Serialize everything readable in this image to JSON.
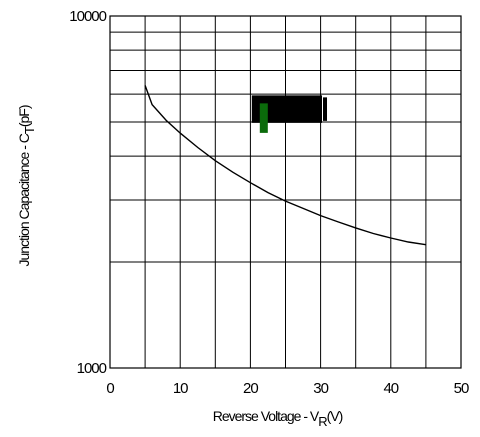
{
  "chart_data": {
    "type": "line",
    "title": "",
    "xlabel": "Reverse Voltage - V",
    "xlabel_sub": "R",
    "xlabel_unit": "(V)",
    "ylabel": "Junction Capacitance - C",
    "ylabel_sub": "T",
    "ylabel_unit": "(pF)",
    "xlim": [
      0,
      50
    ],
    "ylim": [
      1000,
      10000
    ],
    "y_scale": "log",
    "x_ticks": [
      0,
      10,
      20,
      30,
      40,
      50
    ],
    "x_tick_labels": [
      "0",
      "10",
      "20",
      "30",
      "40",
      "50"
    ],
    "y_tick_labels": [
      "1000",
      "10000"
    ],
    "grid": true,
    "series": [
      {
        "x": [
          5,
          6,
          8,
          10,
          12.5,
          15,
          17.5,
          20,
          22.5,
          25,
          27.5,
          30,
          32.5,
          35,
          37.5,
          40,
          42.5,
          45
        ],
        "y": [
          6350,
          5600,
          5050,
          4650,
          4230,
          3880,
          3600,
          3360,
          3150,
          2980,
          2840,
          2710,
          2600,
          2500,
          2410,
          2340,
          2280,
          2240
        ]
      }
    ],
    "annotation": {
      "box_color": "#000000",
      "marker_color": "#0b6b0b",
      "box_x": [
        20.2,
        30.2
      ],
      "box_y": [
        4970,
        5950
      ]
    }
  }
}
